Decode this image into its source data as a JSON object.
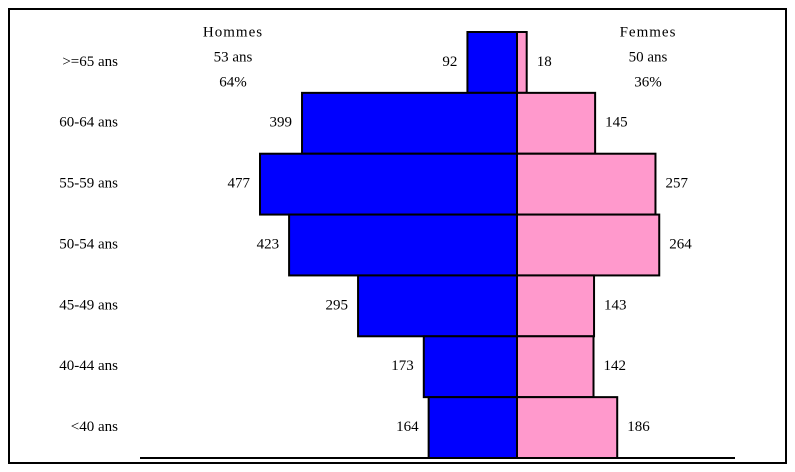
{
  "chart_data": {
    "type": "pyramid",
    "categories": [
      ">=65 ans",
      "60-64 ans",
      "55-59 ans",
      "50-54 ans",
      "45-49 ans",
      "40-44 ans",
      "<40 ans"
    ],
    "series": [
      {
        "name": "Hommes",
        "color": "#0000ff",
        "notes": [
          "53 ans",
          "64%"
        ],
        "values": [
          92,
          399,
          477,
          423,
          295,
          173,
          164
        ]
      },
      {
        "name": "Femmes",
        "color": "#ff99cc",
        "notes": [
          "50 ans",
          "36%"
        ],
        "values": [
          18,
          145,
          257,
          264,
          143,
          142,
          186
        ]
      }
    ]
  }
}
